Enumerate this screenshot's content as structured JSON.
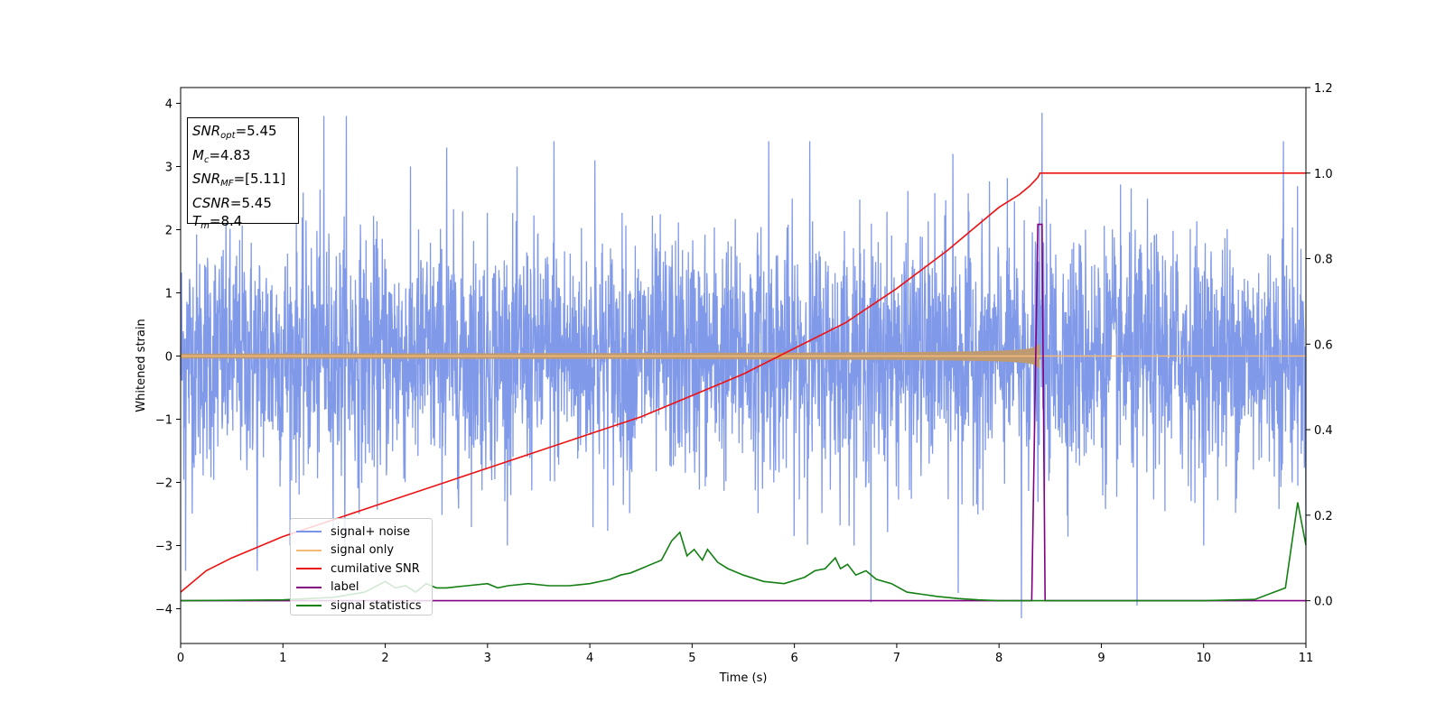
{
  "chart_data": {
    "type": "line",
    "title": "",
    "xlabel": "Time (s)",
    "ylabel": "Whitened strain",
    "xlim": [
      0,
      11
    ],
    "ylim": [
      -4.55,
      4.25
    ],
    "y2lim": [
      -0.1,
      1.2
    ],
    "x_ticks": [
      "0",
      "1",
      "2",
      "3",
      "4",
      "5",
      "6",
      "7",
      "8",
      "9",
      "10",
      "11"
    ],
    "y_ticks": [
      "4",
      "3",
      "2",
      "1",
      "0",
      "−1",
      "−2",
      "−3",
      "−4"
    ],
    "y2_ticks": [
      "1.2",
      "1.0",
      "0.8",
      "0.6",
      "0.4",
      "0.2",
      "0.0"
    ],
    "grid": false,
    "legend_position": "lower-left",
    "annotation": {
      "snr_opt": "=5.45",
      "mc": "=4.83",
      "snr_mf": "=[5.11]",
      "csnr": "=5.45",
      "tm": "=8.4"
    },
    "series": [
      {
        "name": "signal+ noise",
        "axis": "left",
        "color": "#7994e8",
        "description_stats": {
          "envelope_typical": [
            -2.2,
            2.6
          ],
          "peak_max": 3.85,
          "peak_min": -4.15
        },
        "peaks": [
          [
            0.05,
            -3.4
          ],
          [
            1.4,
            3.8
          ],
          [
            1.62,
            3.8
          ],
          [
            0.75,
            -3.4
          ],
          [
            2.6,
            3.3
          ],
          [
            3.65,
            3.4
          ],
          [
            4.05,
            3.1
          ],
          [
            5.75,
            3.4
          ],
          [
            6.15,
            3.4
          ],
          [
            6.75,
            -3.9
          ],
          [
            7.55,
            3.2
          ],
          [
            7.6,
            -3.75
          ],
          [
            8.22,
            -4.15
          ],
          [
            8.42,
            3.85
          ],
          [
            9.35,
            -3.95
          ],
          [
            10.78,
            3.4
          ],
          [
            11.0,
            -2.9
          ]
        ]
      },
      {
        "name": "signal only",
        "axis": "left",
        "color": "#f5b978",
        "chirp": {
          "t_merge": 8.4,
          "amplitude_start": 0.04,
          "amplitude_merge": 0.45
        }
      },
      {
        "name": "cumilative SNR",
        "axis": "right",
        "color": "#ee1111",
        "x": [
          0,
          0.25,
          0.5,
          1,
          1.5,
          2,
          2.5,
          3,
          3.5,
          4,
          4.5,
          5,
          5.5,
          6,
          6.5,
          7,
          7.5,
          7.8,
          8.0,
          8.2,
          8.3,
          8.38,
          8.4,
          9,
          10,
          11
        ],
        "values": [
          0.02,
          0.07,
          0.1,
          0.15,
          0.19,
          0.23,
          0.27,
          0.31,
          0.35,
          0.39,
          0.43,
          0.48,
          0.53,
          0.59,
          0.65,
          0.73,
          0.82,
          0.88,
          0.92,
          0.95,
          0.97,
          0.99,
          1.0,
          1.0,
          1.0,
          1.0
        ]
      },
      {
        "name": "label",
        "axis": "right",
        "color": "#800080",
        "x": [
          0,
          8.32,
          8.38,
          8.42,
          8.45,
          11
        ],
        "values": [
          0,
          0,
          0.88,
          0.88,
          0,
          0
        ]
      },
      {
        "name": "signal statistics",
        "axis": "right",
        "color": "#138013",
        "x": [
          0,
          1,
          1.5,
          1.8,
          2.0,
          2.1,
          2.2,
          2.3,
          2.4,
          2.5,
          2.6,
          2.8,
          3.0,
          3.1,
          3.2,
          3.4,
          3.6,
          3.8,
          4.0,
          4.2,
          4.3,
          4.4,
          4.5,
          4.6,
          4.7,
          4.8,
          4.88,
          4.95,
          5.02,
          5.1,
          5.15,
          5.25,
          5.35,
          5.5,
          5.7,
          5.9,
          6.1,
          6.2,
          6.3,
          6.4,
          6.45,
          6.52,
          6.6,
          6.7,
          6.8,
          6.95,
          7.1,
          7.25,
          7.4,
          7.6,
          7.8,
          8.0,
          8.2,
          8.4,
          9.0,
          10.0,
          10.5,
          10.8,
          10.92,
          11.0
        ],
        "values": [
          0.0,
          0.002,
          0.008,
          0.02,
          0.045,
          0.03,
          0.035,
          0.02,
          0.04,
          0.03,
          0.03,
          0.035,
          0.04,
          0.03,
          0.035,
          0.04,
          0.035,
          0.035,
          0.04,
          0.05,
          0.06,
          0.065,
          0.075,
          0.085,
          0.095,
          0.14,
          0.16,
          0.105,
          0.12,
          0.095,
          0.12,
          0.09,
          0.075,
          0.06,
          0.045,
          0.04,
          0.055,
          0.07,
          0.075,
          0.1,
          0.075,
          0.085,
          0.06,
          0.07,
          0.05,
          0.04,
          0.02,
          0.015,
          0.01,
          0.005,
          0.002,
          0.0,
          0.0,
          0.0,
          0.0,
          0.0,
          0.003,
          0.03,
          0.23,
          0.13
        ]
      }
    ]
  }
}
